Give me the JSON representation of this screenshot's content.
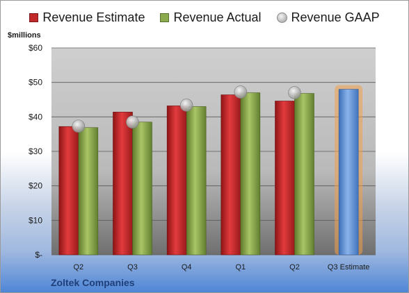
{
  "chart_data": {
    "type": "bar",
    "ylabel": "$millions",
    "ylim": [
      0,
      60
    ],
    "ytick_labels": [
      "$-",
      "$10",
      "$20",
      "$30",
      "$40",
      "$50",
      "$60"
    ],
    "categories": [
      "Q2",
      "Q3",
      "Q4",
      "Q1",
      "Q2",
      "Q3 Estimate"
    ],
    "series": [
      {
        "name": "Revenue Estimate",
        "mark": "bar",
        "color": "#c0282a",
        "values": [
          37.2,
          41.4,
          43.2,
          46.4,
          44.6,
          48.0
        ]
      },
      {
        "name": "Revenue Actual",
        "mark": "bar",
        "color": "#8cab4e",
        "values": [
          36.9,
          38.5,
          43.0,
          47.0,
          46.8,
          null
        ]
      },
      {
        "name": "Revenue GAAP",
        "mark": "circle",
        "color": "#b8b8b8",
        "values": [
          37.3,
          38.5,
          43.4,
          47.2,
          47.0,
          null
        ]
      }
    ],
    "highlight": {
      "category_index": 5,
      "color": "#5b8fd6",
      "glow": "#f2a04a"
    },
    "grid": true,
    "legend_position": "top"
  },
  "footer": {
    "company": "Zoltek Companies"
  }
}
